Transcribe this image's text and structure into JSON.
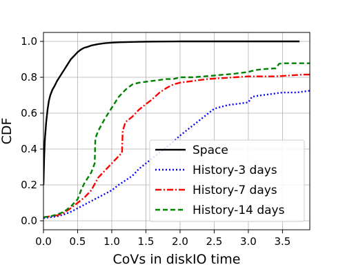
{
  "chart_data": {
    "type": "line",
    "title": "",
    "xlabel": "CoVs in diskIO time",
    "ylabel": "CDF",
    "xlim": [
      0.0,
      3.9
    ],
    "ylim": [
      -0.05,
      1.05
    ],
    "xticks": [
      "0.0",
      "0.5",
      "1.0",
      "1.5",
      "2.0",
      "2.5",
      "3.0",
      "3.5"
    ],
    "xtick_values": [
      0,
      0.5,
      1.0,
      1.5,
      2.0,
      2.5,
      3.0,
      3.5
    ],
    "yticks": [
      "0.0",
      "0.2",
      "0.4",
      "0.6",
      "0.8",
      "1.0"
    ],
    "ytick_values": [
      0,
      0.2,
      0.4,
      0.6,
      0.8,
      1.0
    ],
    "grid": true,
    "legend_position": "lower-right",
    "series": [
      {
        "name": "Space",
        "color": "#000000",
        "dash": "solid",
        "x": [
          0.0,
          0.01,
          0.02,
          0.04,
          0.06,
          0.08,
          0.1,
          0.13,
          0.16,
          0.2,
          0.25,
          0.3,
          0.35,
          0.4,
          0.45,
          0.5,
          0.55,
          0.6,
          0.65,
          0.7,
          0.8,
          0.9,
          1.0,
          1.1,
          1.2,
          1.4,
          1.6,
          2.0,
          2.5,
          3.0,
          3.5,
          3.75
        ],
        "y": [
          0.2,
          0.35,
          0.45,
          0.55,
          0.62,
          0.67,
          0.7,
          0.73,
          0.75,
          0.78,
          0.81,
          0.84,
          0.87,
          0.9,
          0.92,
          0.94,
          0.955,
          0.965,
          0.97,
          0.977,
          0.985,
          0.99,
          0.993,
          0.995,
          0.996,
          0.998,
          0.999,
          1.0,
          1.0,
          1.0,
          1.0,
          1.0
        ]
      },
      {
        "name": "History-3 days",
        "color": "#0000ff",
        "dash": "dotted",
        "x": [
          0.0,
          0.1,
          0.2,
          0.3,
          0.4,
          0.5,
          0.6,
          0.7,
          0.8,
          0.9,
          1.0,
          1.1,
          1.2,
          1.3,
          1.4,
          1.5,
          1.6,
          1.7,
          1.8,
          1.9,
          2.0,
          2.1,
          2.2,
          2.3,
          2.4,
          2.5,
          2.6,
          2.7,
          2.8,
          2.9,
          3.0,
          3.05,
          3.1,
          3.2,
          3.3,
          3.4,
          3.5,
          3.6,
          3.7,
          3.8,
          3.9
        ],
        "y": [
          0.015,
          0.02,
          0.025,
          0.035,
          0.05,
          0.07,
          0.09,
          0.11,
          0.13,
          0.15,
          0.17,
          0.2,
          0.225,
          0.25,
          0.29,
          0.32,
          0.35,
          0.38,
          0.41,
          0.44,
          0.475,
          0.505,
          0.535,
          0.565,
          0.595,
          0.625,
          0.635,
          0.645,
          0.65,
          0.655,
          0.66,
          0.69,
          0.695,
          0.7,
          0.705,
          0.71,
          0.715,
          0.715,
          0.715,
          0.72,
          0.725
        ]
      },
      {
        "name": "History-7 days",
        "color": "#ff0000",
        "dash": "dashdot",
        "x": [
          0.0,
          0.1,
          0.2,
          0.3,
          0.4,
          0.5,
          0.6,
          0.7,
          0.8,
          0.9,
          1.0,
          1.1,
          1.15,
          1.16,
          1.2,
          1.3,
          1.4,
          1.5,
          1.6,
          1.7,
          1.8,
          1.9,
          2.0,
          2.1,
          2.2,
          2.4,
          2.6,
          2.8,
          3.0,
          3.2,
          3.4,
          3.6,
          3.8,
          3.9
        ],
        "y": [
          0.02,
          0.025,
          0.03,
          0.045,
          0.07,
          0.1,
          0.13,
          0.17,
          0.24,
          0.28,
          0.32,
          0.36,
          0.38,
          0.5,
          0.55,
          0.58,
          0.62,
          0.65,
          0.68,
          0.715,
          0.74,
          0.76,
          0.77,
          0.775,
          0.78,
          0.79,
          0.795,
          0.8,
          0.805,
          0.805,
          0.805,
          0.81,
          0.815,
          0.815
        ]
      },
      {
        "name": "History-14 days",
        "color": "#008000",
        "dash": "dashed",
        "x": [
          0.0,
          0.1,
          0.2,
          0.3,
          0.4,
          0.5,
          0.55,
          0.6,
          0.7,
          0.75,
          0.76,
          0.8,
          0.9,
          1.0,
          1.1,
          1.2,
          1.3,
          1.4,
          1.5,
          1.6,
          1.7,
          1.8,
          1.9,
          2.0,
          2.2,
          2.5,
          2.8,
          3.0,
          3.1,
          3.2,
          3.4,
          3.45,
          3.5,
          3.7,
          3.9
        ],
        "y": [
          0.02,
          0.025,
          0.035,
          0.05,
          0.08,
          0.12,
          0.17,
          0.21,
          0.27,
          0.32,
          0.46,
          0.5,
          0.57,
          0.63,
          0.69,
          0.73,
          0.76,
          0.77,
          0.775,
          0.78,
          0.785,
          0.79,
          0.79,
          0.8,
          0.8,
          0.81,
          0.82,
          0.83,
          0.84,
          0.845,
          0.85,
          0.875,
          0.878,
          0.878,
          0.878
        ]
      }
    ]
  }
}
